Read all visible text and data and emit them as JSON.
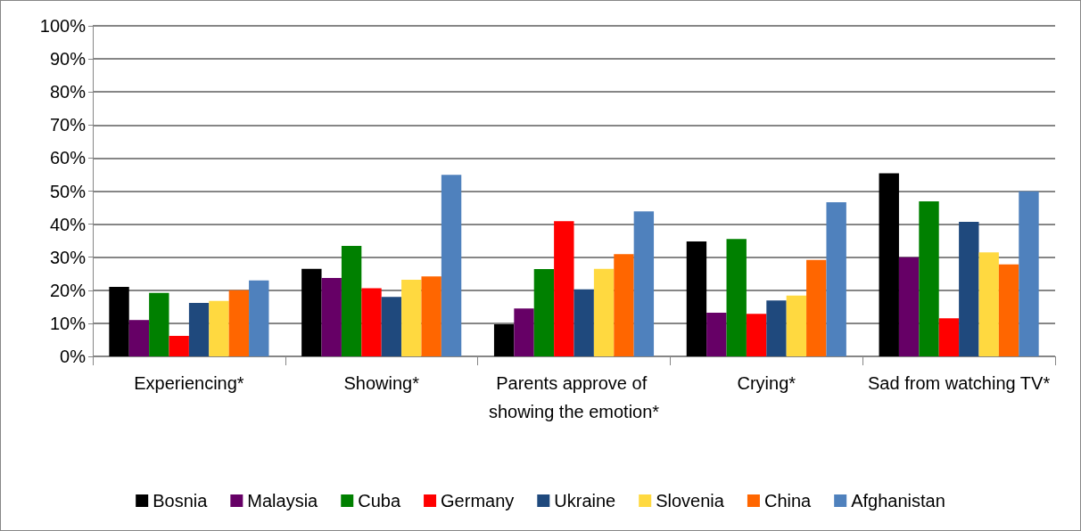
{
  "chart_data": {
    "type": "bar",
    "categories": [
      "Experiencing*",
      "Showing*",
      "Parents approve of showing the emotion*",
      "Crying*",
      "Sad from watching TV*"
    ],
    "series": [
      {
        "name": "Bosnia",
        "color": "#000000",
        "values": [
          21,
          26.5,
          9.7,
          34.8,
          55.4
        ]
      },
      {
        "name": "Malaysia",
        "color": "#660066",
        "values": [
          11,
          23.7,
          14.5,
          13.2,
          30
        ]
      },
      {
        "name": "Cuba",
        "color": "#008000",
        "values": [
          19.2,
          33.4,
          26.4,
          35.5,
          46.9
        ]
      },
      {
        "name": "Germany",
        "color": "#ff0000",
        "values": [
          6.2,
          20.6,
          40.9,
          12.9,
          11.5
        ]
      },
      {
        "name": "Ukraine",
        "color": "#1f497d",
        "values": [
          16.2,
          18,
          20.3,
          16.9,
          40.7
        ]
      },
      {
        "name": "Slovenia",
        "color": "#ffd940",
        "values": [
          16.8,
          23.2,
          26.5,
          18.4,
          31.5
        ]
      },
      {
        "name": "China",
        "color": "#ff6600",
        "values": [
          20,
          24.2,
          30.9,
          29.2,
          27.8
        ]
      },
      {
        "name": "Afghanistan",
        "color": "#4f81bd",
        "values": [
          23,
          54.9,
          43.9,
          46.6,
          49.9
        ]
      }
    ],
    "ylim": [
      0,
      100
    ],
    "yticks": [
      {
        "value": 0,
        "label": "0%"
      },
      {
        "value": 10,
        "label": "10%"
      },
      {
        "value": 20,
        "label": "20%"
      },
      {
        "value": 30,
        "label": "30%"
      },
      {
        "value": 40,
        "label": "40%"
      },
      {
        "value": 50,
        "label": "50%"
      },
      {
        "value": 60,
        "label": "60%"
      },
      {
        "value": 70,
        "label": "70%"
      },
      {
        "value": 80,
        "label": "80%"
      },
      {
        "value": 90,
        "label": "90%"
      },
      {
        "value": 100,
        "label": "100%"
      }
    ],
    "grid": "y",
    "legend": "bottom"
  }
}
